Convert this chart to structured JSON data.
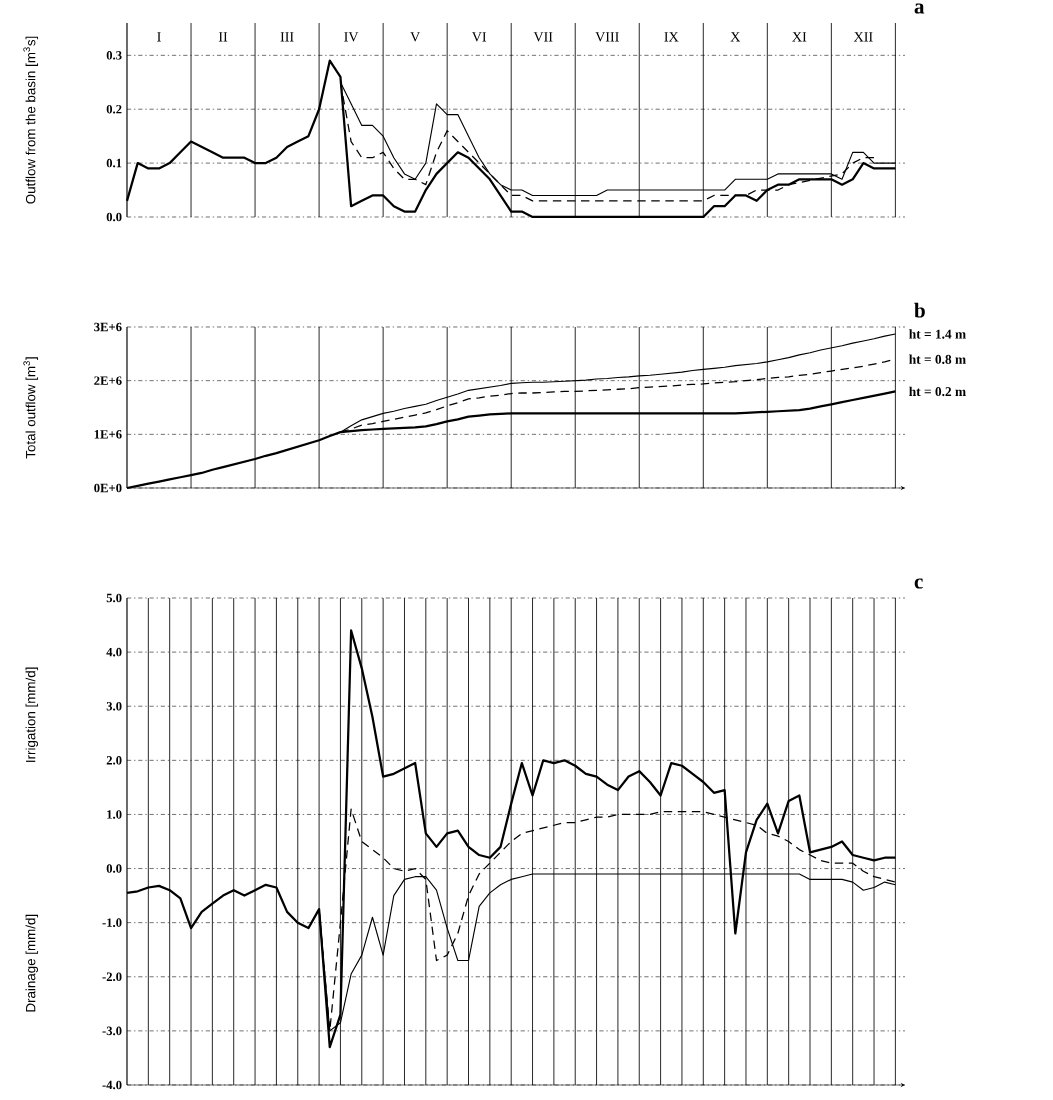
{
  "chart_data": [
    {
      "type": "line",
      "title": "a",
      "ylabel": "Outflow from the basin [m$^{3}$s]",
      "grid": true,
      "marker": "none",
      "categories": [
        null,
        null,
        null,
        "I",
        null,
        null,
        null,
        null,
        null,
        "II",
        null,
        null,
        null,
        null,
        null,
        "III",
        null,
        null,
        null,
        null,
        null,
        "IV",
        null,
        null,
        null,
        null,
        null,
        "V",
        null,
        null,
        null,
        null,
        null,
        "VI",
        null,
        null,
        null,
        null,
        null,
        "VII",
        null,
        null,
        null,
        null,
        null,
        "VIII",
        null,
        null,
        null,
        null,
        null,
        "IX",
        null,
        null,
        null,
        null,
        null,
        "X",
        null,
        null,
        null,
        null,
        null,
        "XI",
        null,
        null,
        null,
        null,
        null,
        "XII",
        null,
        null,
        null
      ],
      "ylim": [
        0,
        0.36
      ],
      "yticks": [
        {
          "value": 0,
          "label": "0.0"
        },
        {
          "value": 0.1,
          "label": "0.1"
        },
        {
          "value": 0.2,
          "label": "0.2"
        },
        {
          "value": 0.3,
          "label": "0.3"
        }
      ],
      "series": [
        {
          "color": "#000000",
          "line_style": "solid",
          "values": [
            0.03,
            0.1,
            0.09,
            0.09,
            0.1,
            0.12,
            0.14,
            0.13,
            0.12,
            0.11,
            0.11,
            0.11,
            0.1,
            0.1,
            0.11,
            0.13,
            0.14,
            0.15,
            0.2,
            0.29,
            0.26,
            0.02,
            0.03,
            0.04,
            0.04,
            0.02,
            0.01,
            0.01,
            0.05,
            0.08,
            0.1,
            0.12,
            0.11,
            0.09,
            0.07,
            0.04,
            0.01,
            0.01,
            0,
            0,
            0,
            0,
            0,
            0,
            0,
            0,
            0,
            0,
            0,
            0,
            0,
            0,
            0,
            0,
            0,
            0.02,
            0.02,
            0.04,
            0.04,
            0.03,
            0.05,
            0.06,
            0.06,
            0.07,
            0.07,
            0.07,
            0.07,
            0.06,
            0.07,
            0.1,
            0.09,
            0.09,
            0.09
          ]
        },
        {
          "color": "#000000",
          "line_style": "dashed",
          "values": [
            null,
            null,
            null,
            null,
            null,
            null,
            null,
            null,
            null,
            null,
            null,
            null,
            null,
            null,
            null,
            null,
            null,
            null,
            null,
            null,
            0.25,
            0.14,
            0.11,
            0.11,
            0.12,
            0.09,
            0.07,
            0.07,
            0.06,
            0.12,
            0.16,
            0.14,
            0.12,
            0.1,
            0.08,
            0.06,
            0.04,
            0.04,
            0.03,
            0.03,
            0.03,
            0.03,
            0.03,
            0.03,
            0.03,
            0.03,
            0.03,
            0.03,
            0.03,
            0.03,
            0.03,
            0.03,
            0.03,
            0.03,
            0.03,
            0.04,
            0.04,
            0.04,
            0.04,
            0.05,
            0.05,
            0.05,
            0.06,
            null,
            null,
            null,
            null,
            0.08,
            0.1,
            0.11,
            0.11,
            null,
            null
          ]
        },
        {
          "color": "#000000",
          "line_style": "solid",
          "values": [
            null,
            null,
            null,
            null,
            null,
            null,
            null,
            null,
            null,
            null,
            null,
            null,
            null,
            null,
            null,
            null,
            null,
            null,
            null,
            null,
            0.25,
            0.21,
            0.17,
            0.17,
            0.15,
            0.11,
            0.08,
            0.07,
            0.1,
            0.21,
            0.19,
            0.19,
            0.15,
            0.11,
            0.08,
            0.06,
            0.05,
            0.05,
            0.04,
            0.04,
            0.04,
            0.04,
            0.04,
            0.04,
            0.04,
            0.05,
            0.05,
            0.05,
            0.05,
            0.05,
            0.05,
            0.05,
            0.05,
            0.05,
            0.05,
            0.05,
            0.05,
            0.07,
            0.07,
            0.07,
            0.07,
            0.08,
            0.08,
            0.08,
            0.08,
            0.08,
            0.08,
            0.07,
            0.12,
            0.12,
            0.1,
            0.1,
            0.1
          ]
        }
      ]
    },
    {
      "type": "line",
      "title": "b",
      "ylabel": "Total outflow [m$^{3}$]",
      "grid": true,
      "marker": "none",
      "categories": [
        null,
        null,
        null,
        null,
        null,
        null,
        null,
        null,
        null,
        null,
        null,
        null,
        null,
        null,
        null,
        null,
        null,
        null,
        null,
        null,
        null,
        null,
        null,
        null,
        null,
        null,
        null,
        null,
        null,
        null,
        null,
        null,
        null,
        null,
        null,
        null,
        null,
        null,
        null,
        null,
        null,
        null,
        null,
        null,
        null,
        null,
        null,
        null,
        null,
        null,
        null,
        null,
        null,
        null,
        null,
        null,
        null,
        null,
        null,
        null,
        null,
        null,
        null,
        null,
        null,
        null,
        null,
        null,
        null,
        null,
        null,
        null,
        null
      ],
      "ylim": [
        0,
        3000000
      ],
      "yticks": [
        {
          "value": 0,
          "label": "0E+0"
        },
        {
          "value": 1000000,
          "label": "1E+6"
        },
        {
          "value": 2000000,
          "label": "2E+6"
        },
        {
          "value": 3000000,
          "label": "3E+6"
        }
      ],
      "series": [
        {
          "name": "ht = 0.2 m",
          "color": "#000000",
          "line_style": "solid",
          "values": [
            0,
            40000,
            80000,
            120000,
            160000,
            200000,
            240000,
            280000,
            340000,
            390000,
            440000,
            490000,
            540000,
            600000,
            650000,
            710000,
            770000,
            830000,
            890000,
            970000,
            1040000,
            1060000,
            1080000,
            1090000,
            1100000,
            1110000,
            1120000,
            1130000,
            1150000,
            1190000,
            1240000,
            1280000,
            1330000,
            1350000,
            1370000,
            1380000,
            1390000,
            1390000,
            1390000,
            1390000,
            1390000,
            1390000,
            1390000,
            1390000,
            1390000,
            1390000,
            1390000,
            1390000,
            1390000,
            1390000,
            1390000,
            1390000,
            1390000,
            1390000,
            1390000,
            1390000,
            1390000,
            1390000,
            1400000,
            1410000,
            1420000,
            1430000,
            1440000,
            1450000,
            1480000,
            1520000,
            1560000,
            1600000,
            1640000,
            1680000,
            1720000,
            1760000,
            1800000
          ]
        },
        {
          "name": "ht = 0.8 m",
          "color": "#000000",
          "line_style": "dashed",
          "values": [
            null,
            null,
            null,
            null,
            null,
            null,
            null,
            null,
            null,
            null,
            null,
            null,
            null,
            null,
            null,
            null,
            null,
            null,
            null,
            null,
            1040000,
            1100000,
            1170000,
            1200000,
            1240000,
            1280000,
            1320000,
            1360000,
            1400000,
            1460000,
            1530000,
            1590000,
            1660000,
            1680000,
            1710000,
            1730000,
            1760000,
            1770000,
            1770000,
            1780000,
            1790000,
            1800000,
            1800000,
            1810000,
            1820000,
            1830000,
            1840000,
            1850000,
            1870000,
            1880000,
            1890000,
            1900000,
            1920000,
            1930000,
            1940000,
            1960000,
            1970000,
            1980000,
            2000000,
            2020000,
            2040000,
            2060000,
            2070000,
            2100000,
            2120000,
            2150000,
            2180000,
            2210000,
            2240000,
            2270000,
            2310000,
            2350000,
            2400000
          ]
        },
        {
          "name": "ht = 1.4 m",
          "color": "#000000",
          "line_style": "solid",
          "values": [
            null,
            null,
            null,
            null,
            null,
            null,
            null,
            null,
            null,
            null,
            null,
            null,
            null,
            null,
            null,
            null,
            null,
            null,
            null,
            null,
            1040000,
            1160000,
            1270000,
            1330000,
            1390000,
            1430000,
            1480000,
            1520000,
            1560000,
            1630000,
            1690000,
            1750000,
            1820000,
            1850000,
            1880000,
            1910000,
            1950000,
            1960000,
            1970000,
            1970000,
            1980000,
            1990000,
            2000000,
            2010000,
            2030000,
            2040000,
            2060000,
            2070000,
            2090000,
            2100000,
            2120000,
            2140000,
            2160000,
            2190000,
            2210000,
            2230000,
            2250000,
            2280000,
            2300000,
            2320000,
            2350000,
            2390000,
            2430000,
            2480000,
            2520000,
            2570000,
            2610000,
            2650000,
            2700000,
            2740000,
            2780000,
            2830000,
            2870000
          ]
        }
      ]
    },
    {
      "type": "line",
      "title": "c",
      "ylabel": "Irrigation [mm/d]",
      "annotations": [
        "Drainage [mm/d]"
      ],
      "grid": true,
      "marker": "none",
      "categories": [
        null,
        null,
        null,
        null,
        null,
        null,
        null,
        null,
        null,
        null,
        null,
        null,
        null,
        null,
        null,
        null,
        null,
        null,
        null,
        null,
        null,
        null,
        null,
        null,
        null,
        null,
        null,
        null,
        null,
        null,
        null,
        null,
        null,
        null,
        null,
        null,
        null,
        null,
        null,
        null,
        null,
        null,
        null,
        null,
        null,
        null,
        null,
        null,
        null,
        null,
        null,
        null,
        null,
        null,
        null,
        null,
        null,
        null,
        null,
        null,
        null,
        null,
        null,
        null,
        null,
        null,
        null,
        null,
        null,
        null,
        null,
        null,
        null
      ],
      "ylim": [
        -4,
        5
      ],
      "yticks": [
        {
          "value": -4,
          "label": "-4.0"
        },
        {
          "value": -3,
          "label": "-3.0"
        },
        {
          "value": -2,
          "label": "-2.0"
        },
        {
          "value": -1,
          "label": "-1.0"
        },
        {
          "value": 0,
          "label": "0.0"
        },
        {
          "value": 1,
          "label": "1.0"
        },
        {
          "value": 2,
          "label": "2.0"
        },
        {
          "value": 3,
          "label": "3.0"
        },
        {
          "value": 4,
          "label": "4.0"
        },
        {
          "value": 5,
          "label": "5.0"
        }
      ],
      "series": [
        {
          "color": "#000000",
          "line_style": "solid",
          "values": [
            -0.45,
            -0.42,
            -0.35,
            -0.32,
            -0.4,
            -0.55,
            -1.1,
            -0.8,
            -0.65,
            -0.5,
            -0.4,
            -0.5,
            -0.4,
            -0.3,
            -0.35,
            -0.8,
            -1,
            -1.1,
            -0.75,
            -3.3,
            -2.7,
            4.4,
            3.7,
            2.8,
            1.7,
            1.75,
            1.85,
            1.95,
            0.65,
            0.4,
            0.65,
            0.7,
            0.4,
            0.25,
            0.2,
            0.4,
            1.2,
            1.95,
            1.35,
            2,
            1.95,
            2,
            1.9,
            1.75,
            1.7,
            1.55,
            1.45,
            1.7,
            1.8,
            1.6,
            1.35,
            1.95,
            1.9,
            1.75,
            1.6,
            1.4,
            1.45,
            -1.2,
            0.3,
            0.9,
            1.2,
            0.65,
            1.25,
            1.35,
            0.3,
            0.35,
            0.4,
            0.5,
            0.25,
            0.2,
            0.15,
            0.2,
            0.2
          ]
        },
        {
          "color": "#000000",
          "line_style": "dashed",
          "values": [
            null,
            null,
            null,
            null,
            null,
            null,
            null,
            null,
            null,
            null,
            null,
            null,
            null,
            null,
            null,
            null,
            null,
            null,
            -0.75,
            -3,
            -1,
            1.1,
            0.5,
            0.35,
            0.2,
            0,
            -0.05,
            0,
            -0.2,
            -1.7,
            -1.6,
            -1.2,
            -0.5,
            -0.1,
            0.1,
            0.3,
            0.5,
            0.65,
            0.7,
            0.75,
            0.8,
            0.85,
            0.85,
            0.9,
            0.95,
            0.95,
            1,
            1,
            1,
            1,
            1.05,
            1.05,
            1.05,
            1.05,
            1.05,
            1,
            0.95,
            0.9,
            0.85,
            0.8,
            0.65,
            0.6,
            0.5,
            0.35,
            0.25,
            0.15,
            0.1,
            0.1,
            0.1,
            -0.05,
            -0.15,
            -0.2,
            -0.25
          ]
        },
        {
          "color": "#000000",
          "line_style": "solid",
          "values": [
            null,
            null,
            null,
            null,
            null,
            null,
            null,
            null,
            null,
            null,
            null,
            null,
            null,
            null,
            null,
            null,
            null,
            null,
            -0.75,
            -3,
            -2.85,
            -1.95,
            -1.6,
            -0.9,
            -1.6,
            -0.5,
            -0.2,
            -0.15,
            -0.15,
            -0.4,
            -1.1,
            -1.7,
            -1.7,
            -0.7,
            -0.45,
            -0.3,
            -0.2,
            -0.15,
            -0.1,
            -0.1,
            -0.1,
            -0.1,
            -0.1,
            -0.1,
            -0.1,
            -0.1,
            -0.1,
            -0.1,
            -0.1,
            -0.1,
            -0.1,
            -0.1,
            -0.1,
            -0.1,
            -0.1,
            -0.1,
            -0.1,
            -0.1,
            -0.1,
            -0.1,
            -0.1,
            -0.1,
            -0.1,
            -0.1,
            -0.2,
            -0.2,
            -0.2,
            -0.2,
            -0.25,
            -0.4,
            -0.35,
            -0.25,
            -0.3
          ]
        }
      ]
    }
  ]
}
